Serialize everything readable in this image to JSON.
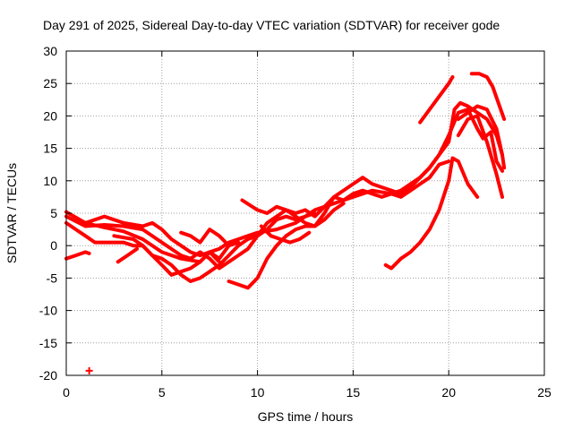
{
  "chart_data": {
    "type": "scatter",
    "title": "Day 291 of 2025, Sidereal Day-to-day VTEC variation (SDTVAR) for receiver gode",
    "xlabel": "GPS time / hours",
    "ylabel": "SDTVAR / TECUs",
    "xlim": [
      0,
      25
    ],
    "ylim": [
      -20,
      30
    ],
    "xticks": [
      0,
      5,
      10,
      15,
      20,
      25
    ],
    "yticks": [
      -20,
      -15,
      -10,
      -5,
      0,
      5,
      10,
      15,
      20,
      25,
      30
    ],
    "grid": true,
    "color": "#ff0000",
    "series": [
      {
        "name": "track-1",
        "points": [
          [
            0,
            5.2
          ],
          [
            1,
            3.5
          ],
          [
            2,
            2.8
          ],
          [
            3,
            2.2
          ],
          [
            4,
            1.0
          ],
          [
            5,
            -1.0
          ],
          [
            6,
            -2.0
          ],
          [
            7,
            -2.5
          ],
          [
            7.5,
            -1.0
          ],
          [
            8,
            -2.0
          ],
          [
            8.5,
            0
          ],
          [
            9,
            1.0
          ],
          [
            9.5,
            1.5
          ],
          [
            10,
            2.0
          ],
          [
            11,
            2.5
          ],
          [
            12,
            3.5
          ],
          [
            13,
            5.5
          ],
          [
            14,
            6.5
          ],
          [
            15,
            7.5
          ],
          [
            16,
            8.5
          ],
          [
            17,
            8.0
          ],
          [
            17.5,
            8.5
          ],
          [
            18,
            9.5
          ],
          [
            18.5,
            10.5
          ],
          [
            19,
            12.0
          ],
          [
            19.5,
            14.0
          ],
          [
            20,
            16.0
          ],
          [
            20.3,
            21.0
          ],
          [
            20.6,
            22.0
          ],
          [
            21,
            21.5
          ],
          [
            21.5,
            20.5
          ],
          [
            22,
            19.5
          ],
          [
            22.5,
            17.0
          ],
          [
            22.8,
            14.0
          ]
        ]
      },
      {
        "name": "track-2",
        "points": [
          [
            0,
            4.5
          ],
          [
            1,
            3.0
          ],
          [
            2,
            3.2
          ],
          [
            3,
            3.0
          ],
          [
            4,
            2.5
          ],
          [
            5,
            0.5
          ],
          [
            6,
            -1.5
          ],
          [
            6.5,
            -2.0
          ],
          [
            7,
            -1.0
          ],
          [
            7.5,
            -2.0
          ],
          [
            8,
            -3.5
          ],
          [
            8.5,
            -2.5
          ],
          [
            9,
            -1.5
          ],
          [
            9.5,
            -0.5
          ],
          [
            10,
            1.5
          ],
          [
            10.5,
            3.5
          ],
          [
            11,
            4.5
          ],
          [
            11.5,
            5.5
          ],
          [
            12,
            5.0
          ],
          [
            12.5,
            5.5
          ],
          [
            13,
            4.5
          ],
          [
            13.5,
            6.0
          ],
          [
            14,
            7.5
          ],
          [
            15,
            9.5
          ],
          [
            15.5,
            10.5
          ],
          [
            16,
            9.5
          ],
          [
            16.5,
            9.0
          ],
          [
            17,
            8.5
          ],
          [
            17.5,
            8.0
          ],
          [
            18,
            9.0
          ],
          [
            18.5,
            10.5
          ],
          [
            19,
            12.0
          ],
          [
            19.5,
            14.0
          ],
          [
            20,
            17.0
          ],
          [
            20.5,
            20.5
          ],
          [
            21,
            21.0
          ],
          [
            21.5,
            18.0
          ],
          [
            21.8,
            16.5
          ],
          [
            22.2,
            17.5
          ],
          [
            22.5,
            13.0
          ],
          [
            22.8,
            11.5
          ]
        ]
      },
      {
        "name": "track-3",
        "points": [
          [
            0,
            3.5
          ],
          [
            0.5,
            2.5
          ],
          [
            1,
            1.5
          ],
          [
            1.5,
            0.5
          ],
          [
            2,
            0.5
          ],
          [
            3,
            0.5
          ],
          [
            3.5,
            0
          ],
          [
            4,
            0
          ],
          [
            4.5,
            -1.5
          ],
          [
            5,
            -2.0
          ],
          [
            5.5,
            -3.0
          ],
          [
            6,
            -4.5
          ],
          [
            6.5,
            -5.5
          ],
          [
            7,
            -5.0
          ],
          [
            7.5,
            -4.0
          ],
          [
            8,
            -3.0
          ],
          [
            8.5,
            -1.5
          ],
          [
            9,
            0
          ],
          [
            9.5,
            1.0
          ],
          [
            10,
            1.5
          ],
          [
            10.5,
            2.5
          ],
          [
            11,
            4.0
          ],
          [
            11.5,
            4.5
          ],
          [
            12,
            4.0
          ],
          [
            12.5,
            4.5
          ],
          [
            13,
            5.0
          ]
        ]
      },
      {
        "name": "track-4",
        "points": [
          [
            2.5,
            1.5
          ],
          [
            3.5,
            1.0
          ],
          [
            4,
            0
          ],
          [
            4.5,
            -1.5
          ],
          [
            5,
            -3.0
          ],
          [
            5.5,
            -4.5
          ],
          [
            6,
            -4.0
          ],
          [
            6.5,
            -3.5
          ],
          [
            7,
            -2.5
          ],
          [
            7.5,
            -1.0
          ],
          [
            8,
            -0.5
          ],
          [
            8.5,
            0.5
          ],
          [
            9,
            1.0
          ]
        ]
      },
      {
        "name": "track-5",
        "points": [
          [
            1,
            3.5
          ],
          [
            2,
            4.5
          ],
          [
            3,
            3.5
          ],
          [
            4,
            3.0
          ],
          [
            4.5,
            3.5
          ],
          [
            5,
            2.5
          ],
          [
            5.5,
            1.0
          ],
          [
            6,
            0
          ],
          [
            6.5,
            -1.0
          ],
          [
            7,
            -1.5
          ],
          [
            7.5,
            -1.0
          ],
          [
            8,
            -2.5
          ]
        ]
      },
      {
        "name": "track-6",
        "points": [
          [
            6,
            2.0
          ],
          [
            6.5,
            1.5
          ],
          [
            7,
            0.5
          ],
          [
            7.5,
            2.5
          ],
          [
            8,
            1.5
          ],
          [
            8.5,
            0
          ],
          [
            9,
            0.5
          ]
        ]
      },
      {
        "name": "track-7",
        "points": [
          [
            0,
            -2.0
          ],
          [
            0.5,
            -1.5
          ],
          [
            1,
            -1.0
          ],
          [
            1.2,
            -1.2
          ]
        ]
      },
      {
        "name": "track-8",
        "points": [
          [
            2.7,
            -2.5
          ],
          [
            3.2,
            -1.5
          ],
          [
            3.7,
            -0.5
          ]
        ]
      },
      {
        "name": "track-9",
        "points": [
          [
            8.5,
            -5.5
          ],
          [
            9,
            -6.0
          ],
          [
            9.5,
            -6.5
          ],
          [
            10,
            -5.0
          ],
          [
            10.5,
            -2.0
          ],
          [
            11,
            0
          ],
          [
            11.5,
            1.5
          ],
          [
            12,
            2.5
          ],
          [
            12.5,
            3.0
          ],
          [
            13,
            3.0
          ],
          [
            13.5,
            4.0
          ],
          [
            14,
            5.5
          ],
          [
            14.5,
            6.5
          ]
        ]
      },
      {
        "name": "track-10",
        "points": [
          [
            9.2,
            7.0
          ],
          [
            10,
            5.5
          ],
          [
            10.5,
            5.0
          ],
          [
            11,
            6.0
          ],
          [
            11.5,
            5.5
          ],
          [
            12,
            4.5
          ],
          [
            12.5,
            3.5
          ],
          [
            13,
            3.0
          ],
          [
            13.5,
            5.0
          ],
          [
            14,
            7.5
          ],
          [
            14.5,
            7.0
          ],
          [
            15,
            8.0
          ],
          [
            15.5,
            8.5
          ],
          [
            16,
            8.0
          ],
          [
            16.5,
            7.5
          ],
          [
            17,
            8.0
          ],
          [
            17.5,
            7.5
          ],
          [
            18,
            8.5
          ],
          [
            18.5,
            9.5
          ],
          [
            19,
            10.5
          ],
          [
            19.5,
            12.5
          ],
          [
            20,
            13.0
          ]
        ]
      },
      {
        "name": "track-11",
        "points": [
          [
            10.2,
            3.0
          ],
          [
            10.7,
            1.5
          ],
          [
            11.2,
            1.0
          ],
          [
            11.7,
            0.5
          ],
          [
            12.2,
            1.0
          ],
          [
            12.7,
            2.0
          ]
        ]
      },
      {
        "name": "track-12",
        "points": [
          [
            16.7,
            -3.0
          ],
          [
            17,
            -3.5
          ],
          [
            17.5,
            -2.0
          ],
          [
            18,
            -1.0
          ],
          [
            18.5,
            0.5
          ],
          [
            19,
            2.5
          ],
          [
            19.5,
            5.5
          ],
          [
            20,
            10.0
          ],
          [
            20.2,
            13.5
          ],
          [
            20.5,
            13.0
          ],
          [
            21,
            9.5
          ],
          [
            21.5,
            7.5
          ]
        ]
      },
      {
        "name": "track-13",
        "points": [
          [
            18.5,
            19.0
          ],
          [
            19,
            21.0
          ],
          [
            19.5,
            23.0
          ],
          [
            20,
            25.0
          ],
          [
            20.2,
            26.0
          ]
        ]
      },
      {
        "name": "track-14",
        "points": [
          [
            20.5,
            19.5
          ],
          [
            21,
            20.5
          ],
          [
            21.5,
            21.5
          ],
          [
            22,
            21.0
          ],
          [
            22.5,
            18.0
          ],
          [
            22.8,
            14.0
          ],
          [
            22.9,
            12.0
          ]
        ]
      },
      {
        "name": "track-15",
        "points": [
          [
            20.5,
            17.0
          ],
          [
            21,
            19.5
          ],
          [
            21.5,
            20.0
          ],
          [
            22,
            16.0
          ],
          [
            22.5,
            11.0
          ],
          [
            22.8,
            7.5
          ]
        ]
      },
      {
        "name": "track-16",
        "points": [
          [
            21.2,
            26.5
          ],
          [
            21.6,
            26.5
          ],
          [
            22,
            26.0
          ],
          [
            22.3,
            24.5
          ],
          [
            22.6,
            22.0
          ],
          [
            22.9,
            19.5
          ]
        ]
      },
      {
        "name": "outlier",
        "points": [
          [
            1.2,
            -19.3
          ]
        ]
      }
    ]
  }
}
